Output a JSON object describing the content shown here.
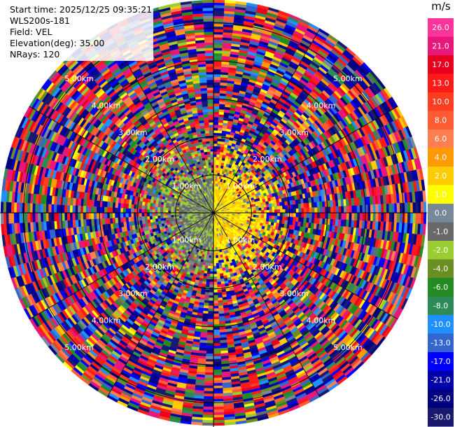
{
  "info": {
    "start_time": "Start time: 2025/12/25 09:35:21",
    "instrument": "WLS200s-181",
    "field": "Field: VEL",
    "elevation": "Elevation(deg): 35.00",
    "nrays": "NRays: 120"
  },
  "colorbar": {
    "unit": "m/s",
    "ticks": [
      "26.0",
      "21.0",
      "17.0",
      "13.0",
      "10.0",
      "8.0",
      "6.0",
      "4.0",
      "2.0",
      "1.0",
      "0.0",
      "-1.0",
      "-2.0",
      "-4.0",
      "-6.0",
      "-8.0",
      "-10.0",
      "-13.0",
      "-17.0",
      "-21.0",
      "-26.0",
      "-30.0"
    ],
    "colors": [
      "#ff3399",
      "#e8177a",
      "#e8001e",
      "#ff1a1a",
      "#ff3d1f",
      "#ff5c33",
      "#ff7f50",
      "#ff9a00",
      "#ffcc00",
      "#ffff00",
      "#778899",
      "#696969",
      "#9acd32",
      "#6b8e23",
      "#228b22",
      "#2e8b57",
      "#1e90ff",
      "#3366cc",
      "#0000ff",
      "#0000aa",
      "#000080",
      "#191970"
    ]
  },
  "chart_data": {
    "type": "heatmap",
    "projection": "polar (PPI)",
    "field": "VEL",
    "unit": "m/s",
    "nrays": 120,
    "elevation_deg": 35.0,
    "range_ring_labels": [
      "1.00km",
      "2.00km",
      "3.00km",
      "4.00km",
      "5.00km"
    ],
    "range_rings_km": [
      1,
      2,
      3,
      4,
      5
    ],
    "max_range_km": 5.6,
    "color_levels": [
      -30.0,
      -26.0,
      -21.0,
      -17.0,
      -13.0,
      -10.0,
      -8.0,
      -6.0,
      -4.0,
      -2.0,
      -1.0,
      0.0,
      1.0,
      2.0,
      4.0,
      6.0,
      8.0,
      10.0,
      13.0,
      17.0,
      21.0,
      26.0
    ],
    "near_field_velocity_range": [
      -2.0,
      4.0
    ],
    "far_field": "noise across full scale"
  }
}
